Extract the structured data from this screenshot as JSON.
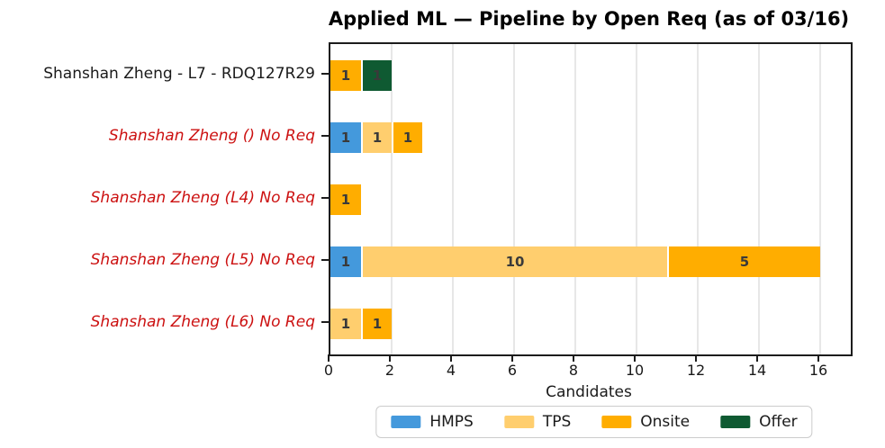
{
  "title": "Applied ML — Pipeline by Open Req (as of 03/16)",
  "chart_data": {
    "type": "bar",
    "orientation": "horizontal",
    "stacked": true,
    "title": "Applied ML — Pipeline by Open Req (as of 03/16)",
    "xlabel": "Candidates",
    "xlim": [
      0,
      17
    ],
    "xticks": [
      0,
      2,
      4,
      6,
      8,
      10,
      12,
      14,
      16
    ],
    "grid": "vertical",
    "legend_position": "bottom-center",
    "categories": [
      {
        "label": "Shanshan Zheng - L7 - RDQ127R29",
        "label_style": "normal",
        "label_color": "#1a1a1a"
      },
      {
        "label": "Shanshan Zheng () No Req",
        "label_style": "italic",
        "label_color": "#cc1111"
      },
      {
        "label": "Shanshan Zheng (L4) No Req",
        "label_style": "italic",
        "label_color": "#cc1111"
      },
      {
        "label": "Shanshan Zheng (L5) No Req",
        "label_style": "italic",
        "label_color": "#cc1111"
      },
      {
        "label": "Shanshan Zheng (L6) No Req",
        "label_style": "italic",
        "label_color": "#cc1111"
      }
    ],
    "series": [
      {
        "name": "HMPS",
        "color": "#4499dc",
        "values": [
          0,
          1,
          0,
          1,
          0
        ]
      },
      {
        "name": "TPS",
        "color": "#ffce6e",
        "values": [
          0,
          1,
          0,
          10,
          1
        ]
      },
      {
        "name": "Onsite",
        "color": "#ffad00",
        "values": [
          1,
          1,
          1,
          5,
          1
        ]
      },
      {
        "name": "Offer",
        "color": "#0f5a32",
        "values": [
          1,
          0,
          0,
          0,
          0
        ]
      }
    ]
  },
  "colors": {
    "grid": "#e7e7e7",
    "spine": "#1c1c1c",
    "bar_value_text": "#3a3a3a",
    "no_req_label": "#cc1111",
    "normal_label": "#1a1a1a"
  }
}
